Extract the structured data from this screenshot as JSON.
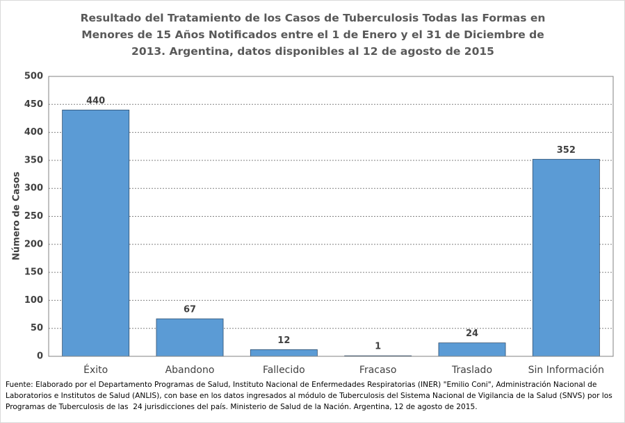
{
  "chart_data": {
    "type": "bar",
    "title": "Resultado del Tratamiento de los Casos de Tuberculosis Todas las Formas en Menores de 15 Años Notificados entre el 1 de Enero y el 31 de Diciembre de 2013. Argentina, datos disponibles al 12 de agosto de 2015",
    "y_label": "Número de Casos",
    "categories": [
      "Éxito",
      "Abandono",
      "Fallecido",
      "Fracaso",
      "Traslado",
      "Sin Información"
    ],
    "values": [
      440,
      67,
      12,
      1,
      24,
      352
    ],
    "color": "#5b9bd5",
    "ylim": [
      0,
      500
    ],
    "yticks": [
      0,
      50,
      100,
      150,
      200,
      250,
      300,
      350,
      400,
      450,
      500
    ],
    "grid": true,
    "source": "Fuente: Elaborado por el Departamento Programas de Salud, Instituto Nacional de Enfermedades Respiratorias (INER) \"Emilio Coni\", Administración Nacional de Laboratorios e Institutos de Salud (ANLIS), con base en los datos ingresados al módulo de Tuberculosis del Sistema Nacional de Vigilancia de la Salud (SNVS) por los Programas de Tuberculosis de las  24 jurisdicciones del país. Ministerio de Salud de la Nación. Argentina, 12 de agosto de 2015."
  }
}
